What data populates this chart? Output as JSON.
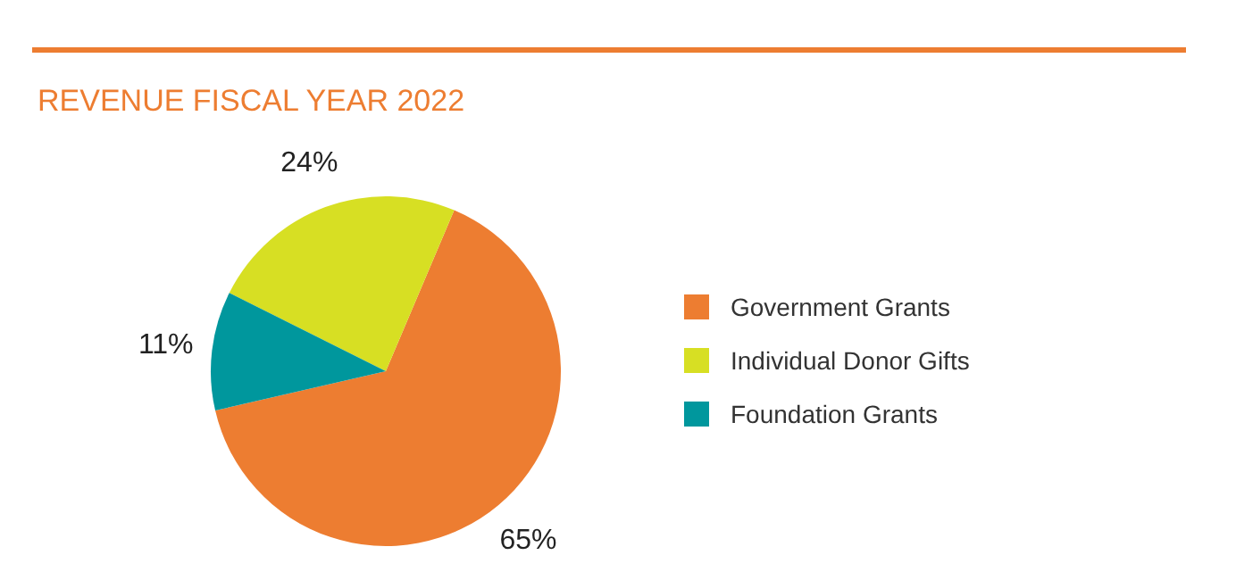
{
  "chart_data": {
    "type": "pie",
    "title": "REVENUE FISCAL YEAR 2022",
    "categories": [
      "Government Grants",
      "Individual Donor Gifts",
      "Foundation Grants"
    ],
    "values": [
      65,
      24,
      11
    ],
    "colors": [
      "#ed7d31",
      "#d7df23",
      "#00979d"
    ],
    "value_labels": [
      "65%",
      "24%",
      "11%"
    ],
    "legend": "right"
  }
}
